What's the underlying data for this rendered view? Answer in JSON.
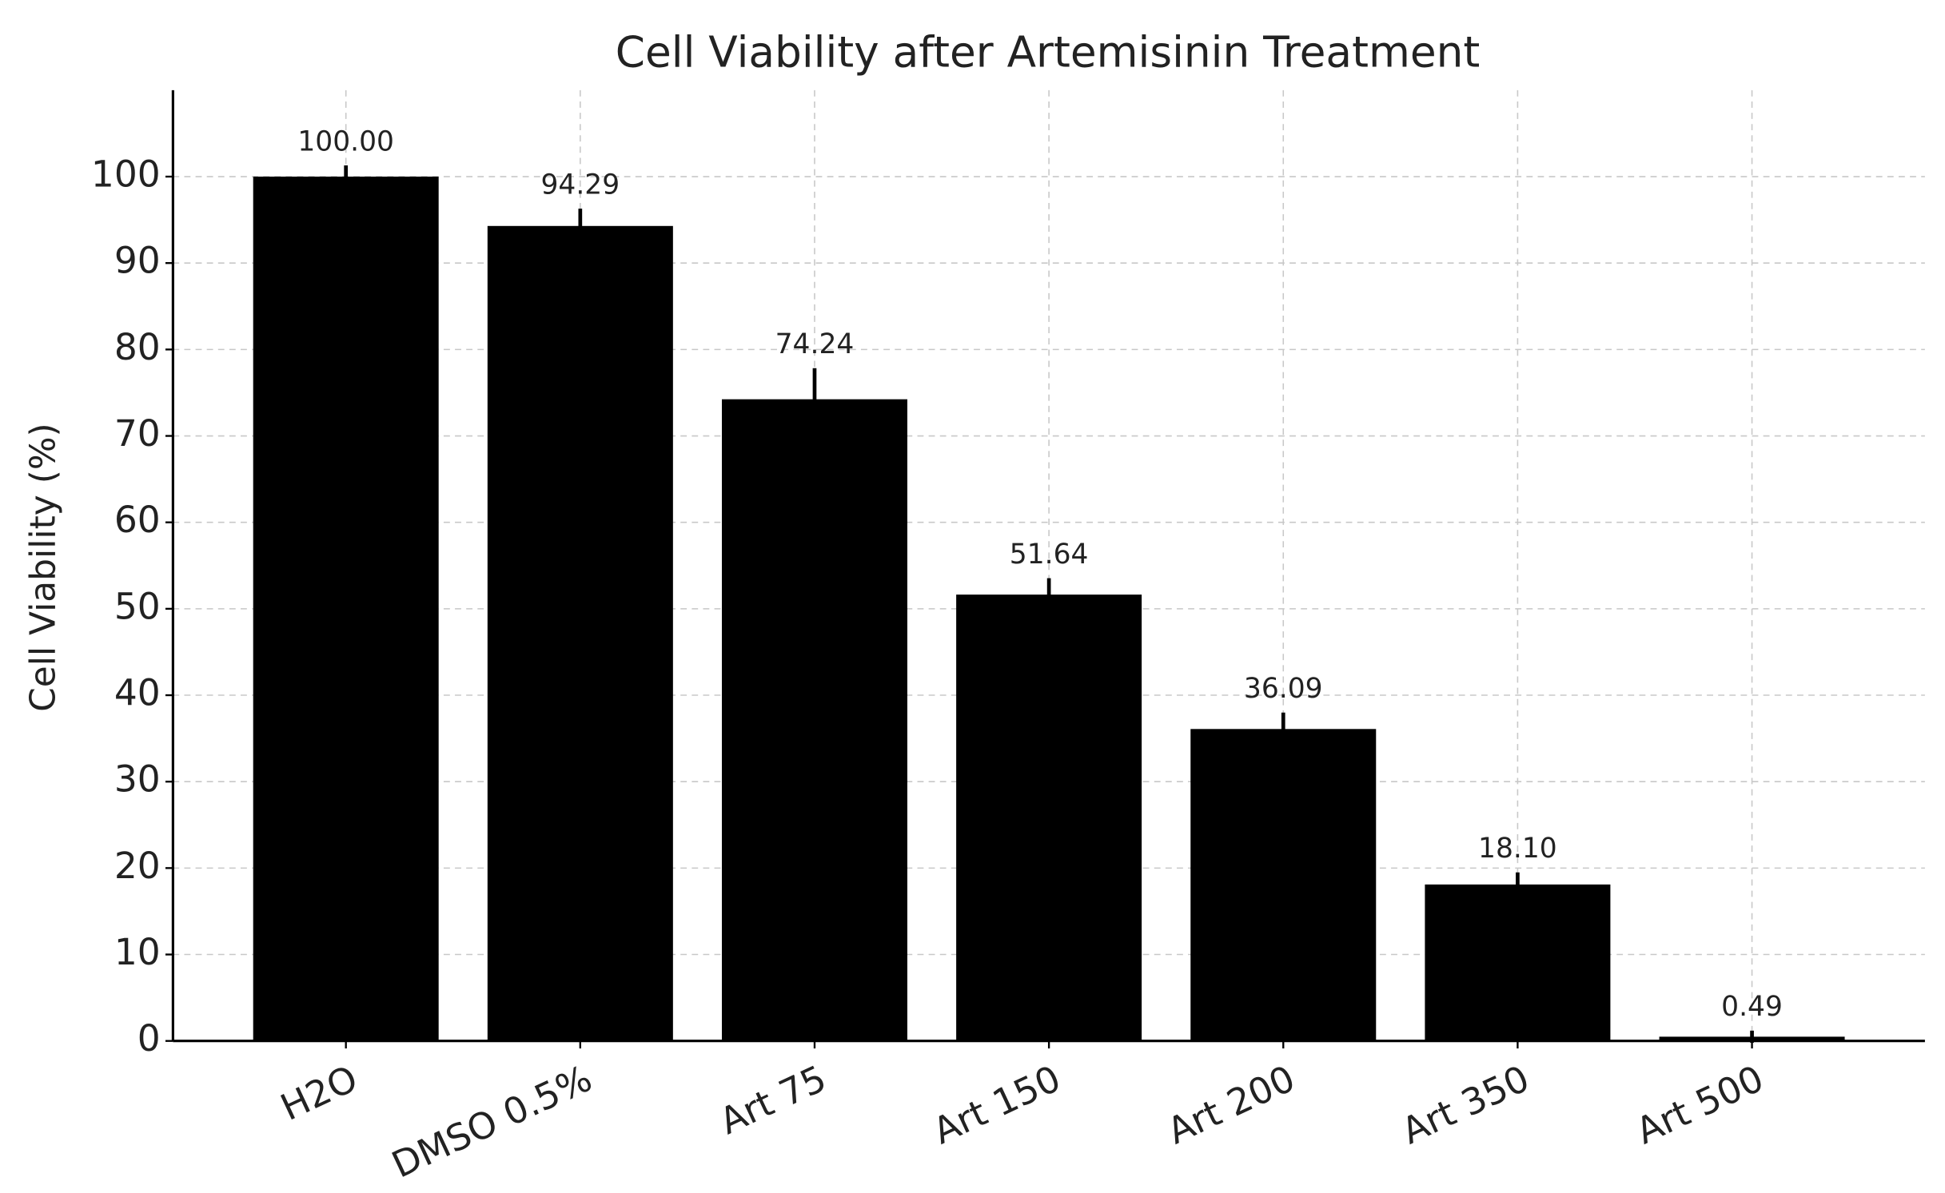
{
  "chart_data": {
    "type": "bar",
    "title": "Cell Viability after Artemisinin Treatment",
    "y_label": "Cell Viability (%)",
    "categories": [
      "H2O",
      "DMSO 0.5%",
      "Art 75",
      "Art 150",
      "Art 200",
      "Art 350",
      "Art 500"
    ],
    "values": [
      100,
      94.29,
      74.24,
      51.64,
      36.09,
      18.1,
      0.49
    ],
    "value_labels": [
      "100.00",
      "94.29",
      "74.24",
      "51.64",
      "36.09",
      "18.10",
      "0.49"
    ],
    "errors": [
      1.3,
      2,
      3.6,
      1.9,
      1.9,
      1.4,
      0.7
    ],
    "color": "#000000",
    "ylim": [
      0,
      110
    ],
    "yticks": [
      0,
      10,
      20,
      30,
      40,
      50,
      60,
      70,
      80,
      90,
      100
    ],
    "grid": true
  }
}
